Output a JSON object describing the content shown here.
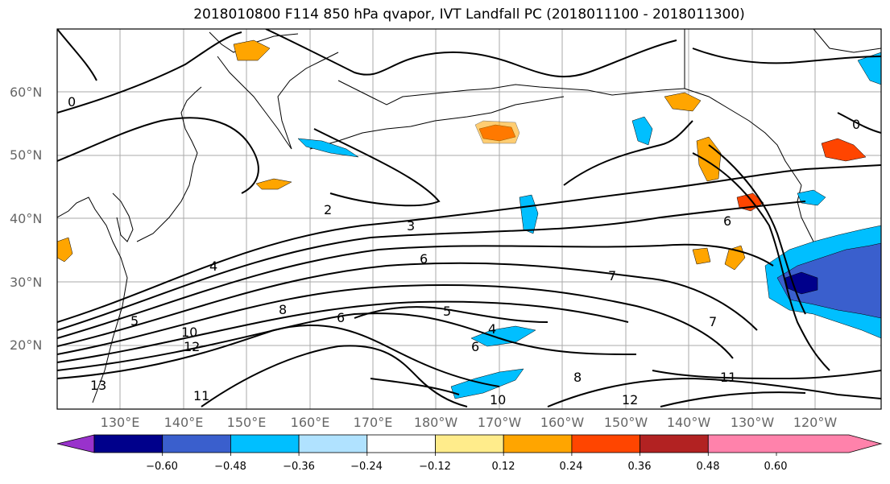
{
  "title": "2018010800 F114 850 hPa qvapor, IVT Landfall PC (2018011100 - 2018011300)",
  "lat_labels": [
    "60°N",
    "50°N",
    "40°N",
    "30°N",
    "20°N"
  ],
  "lon_labels": [
    "130°E",
    "140°E",
    "150°E",
    "160°E",
    "170°E",
    "180°W",
    "170°W",
    "160°W",
    "150°W",
    "140°W",
    "130°W",
    "120°W"
  ],
  "colorbar": {
    "colors": [
      "#9932cc",
      "#00008b",
      "#3a5fcd",
      "#00bfff",
      "#b0e2ff",
      "#ffffff",
      "#ffec8b",
      "#ffa500",
      "#ff4500",
      "#b22222",
      "#ff82ab"
    ],
    "tick_labels": [
      "−0.60",
      "−0.48",
      "−0.36",
      "−0.24",
      "−0.12",
      "0.12",
      "0.24",
      "0.36",
      "0.48",
      "0.60"
    ]
  },
  "contour_labels": [
    "0",
    "0",
    "2",
    "3",
    "4",
    "5",
    "6",
    "6",
    "6",
    "7",
    "7",
    "8",
    "8",
    "10",
    "10",
    "11",
    "11",
    "12",
    "12",
    "13",
    "4",
    "5",
    "6"
  ]
}
